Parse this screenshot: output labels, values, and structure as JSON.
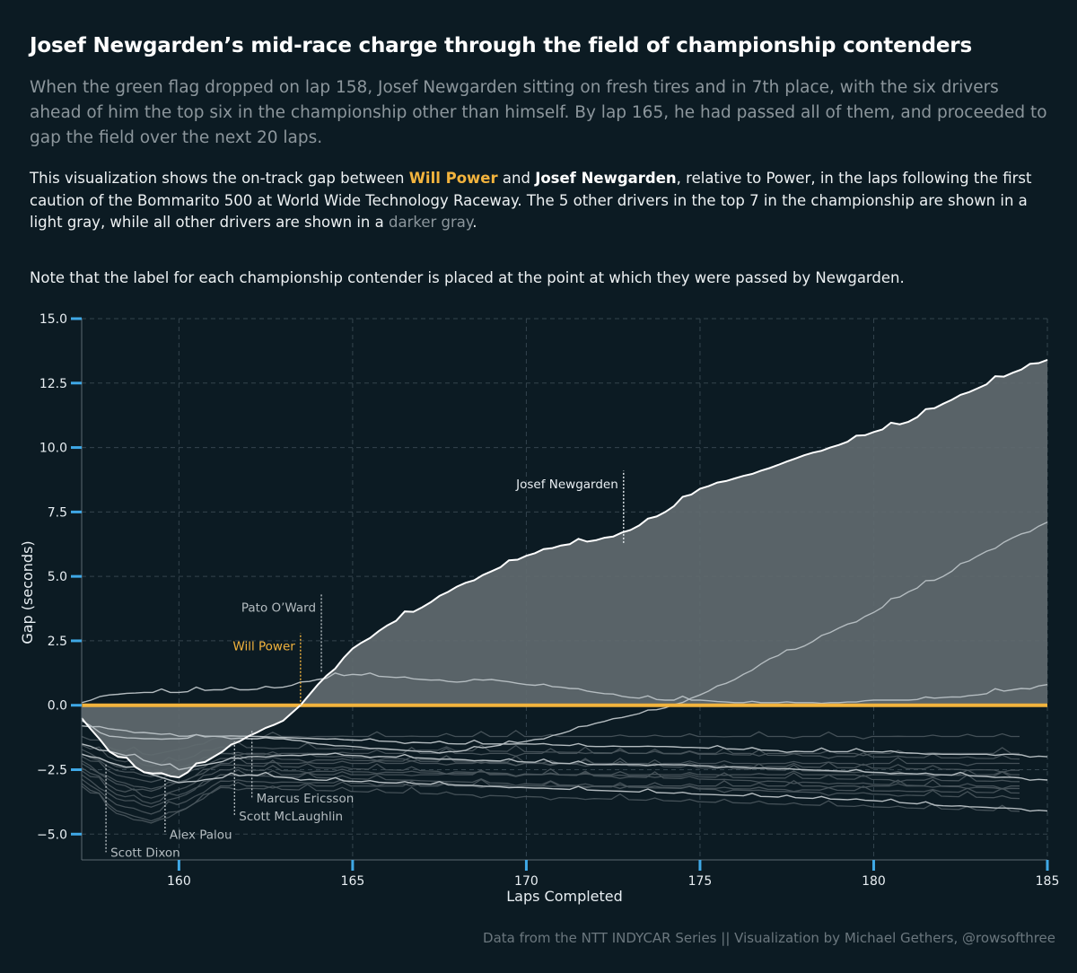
{
  "title": "Josef Newgarden’s mid-race charge through the field of championship contenders",
  "subtitle": "When the green flag dropped on lap 158, Josef Newgarden sitting on fresh tires and in 7th place, with the six drivers ahead of him the top six in the championship other than himself.  By lap 165, he had passed all of them, and proceeded to gap the field over the next 20 laps.",
  "description": {
    "p1": "This visualization shows the on-track gap between ",
    "power": "Will Power",
    "p2": " and ",
    "newgarden": "Josef Newgarden",
    "p3": ", relative to Power, in the laps following the first caution of the Bommarito 500 at World Wide Technology Raceway.  The 5 other drivers in the top 7 in the championship are shown in a light gray, while all other drivers are shown in a ",
    "darker": "darker gray",
    "p4": "."
  },
  "note": "Note that the label for each championship contender is placed at the point at which they were passed by Newgarden.",
  "footer": "Data from the NTT INDYCAR Series || Visualization by Michael Gethers, @rowsofthree",
  "colors": {
    "background": "#0c1b23",
    "power": "#f2b33d",
    "newgarden": "#ffffff",
    "contenders": "#b4bcc0",
    "others": "#4a565d",
    "fill": "#626b70",
    "axis_accent": "#3fa8e6",
    "grid": "#34444d"
  },
  "chart_data": {
    "type": "line",
    "xlabel": "Laps Completed",
    "ylabel": "Gap (seconds)",
    "xlim": [
      157.2,
      185
    ],
    "ylim": [
      -6.0,
      15.0
    ],
    "xticks": [
      160,
      165,
      170,
      175,
      180,
      185
    ],
    "yticks": [
      -5.0,
      -2.5,
      0.0,
      2.5,
      5.0,
      7.5,
      10.0,
      12.5,
      15.0
    ],
    "grid": "dashed",
    "series": [
      {
        "name": "Will Power",
        "x": [
          157.2,
          185
        ],
        "y": [
          0,
          0
        ]
      },
      {
        "name": "Josef Newgarden",
        "x": [
          157.2,
          158,
          159,
          160,
          161,
          162,
          163,
          163.5,
          164,
          165,
          166,
          167,
          168,
          169,
          170,
          171,
          172,
          173,
          174,
          175,
          176,
          177,
          178,
          179,
          180,
          181,
          182,
          183,
          184,
          185
        ],
        "y": [
          -0.5,
          -1.8,
          -2.6,
          -2.8,
          -2.0,
          -1.2,
          -0.6,
          0.0,
          0.8,
          2.2,
          3.1,
          3.8,
          4.6,
          5.2,
          5.8,
          6.2,
          6.4,
          6.8,
          7.5,
          8.4,
          8.8,
          9.2,
          9.7,
          10.1,
          10.6,
          11.0,
          11.7,
          12.3,
          12.9,
          13.4
        ]
      },
      {
        "name": "Pato O’Ward",
        "x": [
          157.2,
          158,
          159,
          160,
          161,
          162,
          163,
          164,
          165,
          166,
          167,
          168,
          169,
          170,
          171,
          172,
          173,
          174,
          175,
          176,
          177,
          178,
          179,
          180,
          181,
          182,
          183,
          184,
          185
        ],
        "y": [
          0.1,
          0.4,
          0.5,
          0.5,
          0.6,
          0.6,
          0.7,
          1.0,
          1.2,
          1.1,
          1.0,
          0.9,
          1.0,
          0.8,
          0.7,
          0.5,
          0.3,
          0.2,
          0.2,
          0.1,
          0.1,
          0.1,
          0.1,
          0.2,
          0.2,
          0.3,
          0.4,
          0.6,
          0.8
        ]
      },
      {
        "name": "Scott McLaughlin",
        "x": [
          157.2,
          158,
          159,
          160,
          161,
          162,
          163,
          164,
          165,
          166,
          167,
          168,
          169,
          170,
          171,
          172,
          173,
          174,
          175,
          176,
          177,
          178,
          179,
          180,
          181,
          182,
          183,
          184,
          185
        ],
        "y": [
          -0.6,
          -1.2,
          -1.3,
          -1.3,
          -1.2,
          -1.3,
          -1.3,
          -1.5,
          -1.6,
          -1.7,
          -1.8,
          -1.8,
          -1.6,
          -1.4,
          -1.1,
          -0.7,
          -0.4,
          -0.1,
          0.4,
          1.0,
          1.8,
          2.3,
          3.0,
          3.6,
          4.4,
          5.0,
          5.8,
          6.5,
          7.1
        ]
      },
      {
        "name": "Marcus Ericsson",
        "x": [
          157.2,
          160,
          162,
          164,
          166,
          168,
          170,
          172,
          174,
          176,
          178,
          180,
          182,
          184,
          185
        ],
        "y": [
          -0.8,
          -1.2,
          -1.2,
          -1.3,
          -1.4,
          -1.5,
          -1.5,
          -1.6,
          -1.6,
          -1.7,
          -1.8,
          -1.8,
          -1.9,
          -1.9,
          -2.0
        ]
      },
      {
        "name": "Scott Dixon",
        "x": [
          157.2,
          160,
          162,
          164,
          166,
          168,
          170,
          172,
          174,
          176,
          178,
          180,
          182,
          184,
          185
        ],
        "y": [
          -1.5,
          -2.5,
          -2.0,
          -1.9,
          -2.0,
          -2.1,
          -2.2,
          -2.3,
          -2.3,
          -2.4,
          -2.5,
          -2.6,
          -2.7,
          -2.8,
          -2.9
        ]
      },
      {
        "name": "Alex Palou",
        "x": [
          157.2,
          160,
          162,
          164,
          166,
          168,
          170,
          172,
          174,
          176,
          178,
          180,
          182,
          184,
          185
        ],
        "y": [
          -1.9,
          -3.0,
          -2.7,
          -2.9,
          -3.0,
          -3.1,
          -3.2,
          -3.3,
          -3.4,
          -3.5,
          -3.6,
          -3.7,
          -3.9,
          -4.0,
          -4.1
        ]
      }
    ],
    "annotations": [
      {
        "label": "Josef Newgarden",
        "x": 172.8
      },
      {
        "label": "Pato O’Ward",
        "x": 164.1
      },
      {
        "label": "Will Power",
        "x": 163.5
      },
      {
        "label": "Marcus Ericsson",
        "x": 162.1
      },
      {
        "label": "Scott McLaughlin",
        "x": 161.6
      },
      {
        "label": "Alex Palou",
        "x": 159.6
      },
      {
        "label": "Scott Dixon",
        "x": 157.9
      }
    ]
  }
}
